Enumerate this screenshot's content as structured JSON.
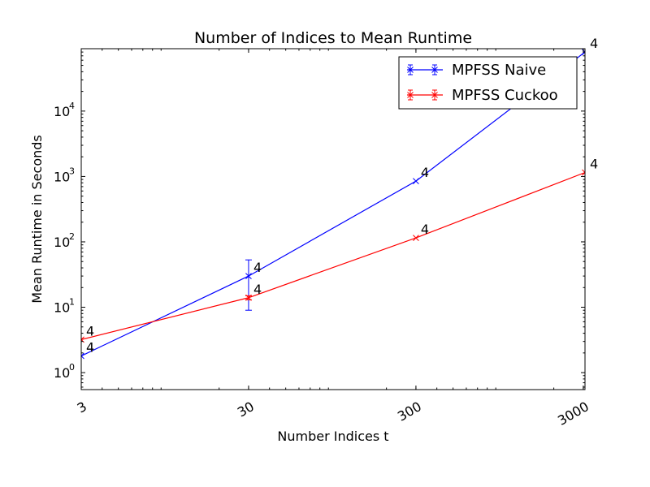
{
  "chart_data": {
    "type": "line",
    "title": "Number of Indices to Mean Runtime",
    "xlabel": "Number Indices t",
    "ylabel": "Mean Runtime in Seconds",
    "x_scale": "log",
    "y_scale": "log",
    "xlim": [
      3,
      3072
    ],
    "ylim": [
      0.55,
      90000
    ],
    "x_ticks": [
      {
        "value": 3,
        "label": "3"
      },
      {
        "value": 30,
        "label": "30"
      },
      {
        "value": 300,
        "label": "300"
      },
      {
        "value": 3000,
        "label": "3000"
      }
    ],
    "y_ticks": [
      {
        "value": 1,
        "base": "10",
        "exp": "0"
      },
      {
        "value": 10,
        "base": "10",
        "exp": "1"
      },
      {
        "value": 100,
        "base": "10",
        "exp": "2"
      },
      {
        "value": 1000,
        "base": "10",
        "exp": "3"
      },
      {
        "value": 10000,
        "base": "10",
        "exp": "4"
      }
    ],
    "grid": false,
    "legend_position": "top-right",
    "series": [
      {
        "name": "MPFSS Naive",
        "color": "#0000ff",
        "marker": "x",
        "points": [
          {
            "x": 3,
            "y": 1.8,
            "label": "4"
          },
          {
            "x": 30,
            "y": 30,
            "err_low": 9,
            "err_high": 53,
            "label": "4"
          },
          {
            "x": 300,
            "y": 850,
            "label": "4"
          },
          {
            "x": 3072,
            "y": 80000,
            "label": "4"
          }
        ]
      },
      {
        "name": "MPFSS Cuckoo",
        "color": "#ff0000",
        "marker": "x",
        "points": [
          {
            "x": 3,
            "y": 3.2,
            "label": "4"
          },
          {
            "x": 30,
            "y": 14,
            "err_low": 13,
            "err_high": 15,
            "label": "4"
          },
          {
            "x": 300,
            "y": 115,
            "label": "4"
          },
          {
            "x": 3072,
            "y": 1150,
            "label": "4"
          }
        ]
      }
    ]
  }
}
